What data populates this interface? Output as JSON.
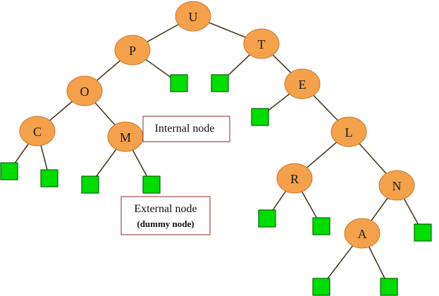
{
  "nodes": [
    {
      "id": "U",
      "label": "U"
    },
    {
      "id": "P",
      "label": "P"
    },
    {
      "id": "T",
      "label": "T"
    },
    {
      "id": "O",
      "label": "O"
    },
    {
      "id": "E",
      "label": "E"
    },
    {
      "id": "C",
      "label": "C"
    },
    {
      "id": "M",
      "label": "M"
    },
    {
      "id": "L",
      "label": "L"
    },
    {
      "id": "R",
      "label": "R"
    },
    {
      "id": "N",
      "label": "N"
    },
    {
      "id": "A",
      "label": "A"
    }
  ],
  "leaves": [
    "P-right",
    "T-left",
    "E-left",
    "C-left",
    "C-right",
    "M-left",
    "M-right",
    "R-left",
    "R-right",
    "N-right",
    "A-left",
    "A-right"
  ],
  "edges": [
    [
      "U",
      "P"
    ],
    [
      "U",
      "T"
    ],
    [
      "P",
      "O"
    ],
    [
      "P",
      "P-right"
    ],
    [
      "T",
      "T-left"
    ],
    [
      "T",
      "E"
    ],
    [
      "O",
      "C"
    ],
    [
      "O",
      "M"
    ],
    [
      "E",
      "E-left"
    ],
    [
      "E",
      "L"
    ],
    [
      "C",
      "C-left"
    ],
    [
      "C",
      "C-right"
    ],
    [
      "M",
      "M-left"
    ],
    [
      "M",
      "M-right"
    ],
    [
      "L",
      "R"
    ],
    [
      "L",
      "N"
    ],
    [
      "R",
      "R-left"
    ],
    [
      "R",
      "R-right"
    ],
    [
      "N",
      "A"
    ],
    [
      "N",
      "N-right"
    ],
    [
      "A",
      "A-left"
    ],
    [
      "A",
      "A-right"
    ]
  ],
  "annotations": {
    "internal": "Internal node",
    "external": "External node",
    "external_sub": "(dummy node)"
  },
  "colors": {
    "node_fill": "#f5a04b",
    "leaf_fill": "#00dd00",
    "box_border": "#8b2a2a"
  }
}
